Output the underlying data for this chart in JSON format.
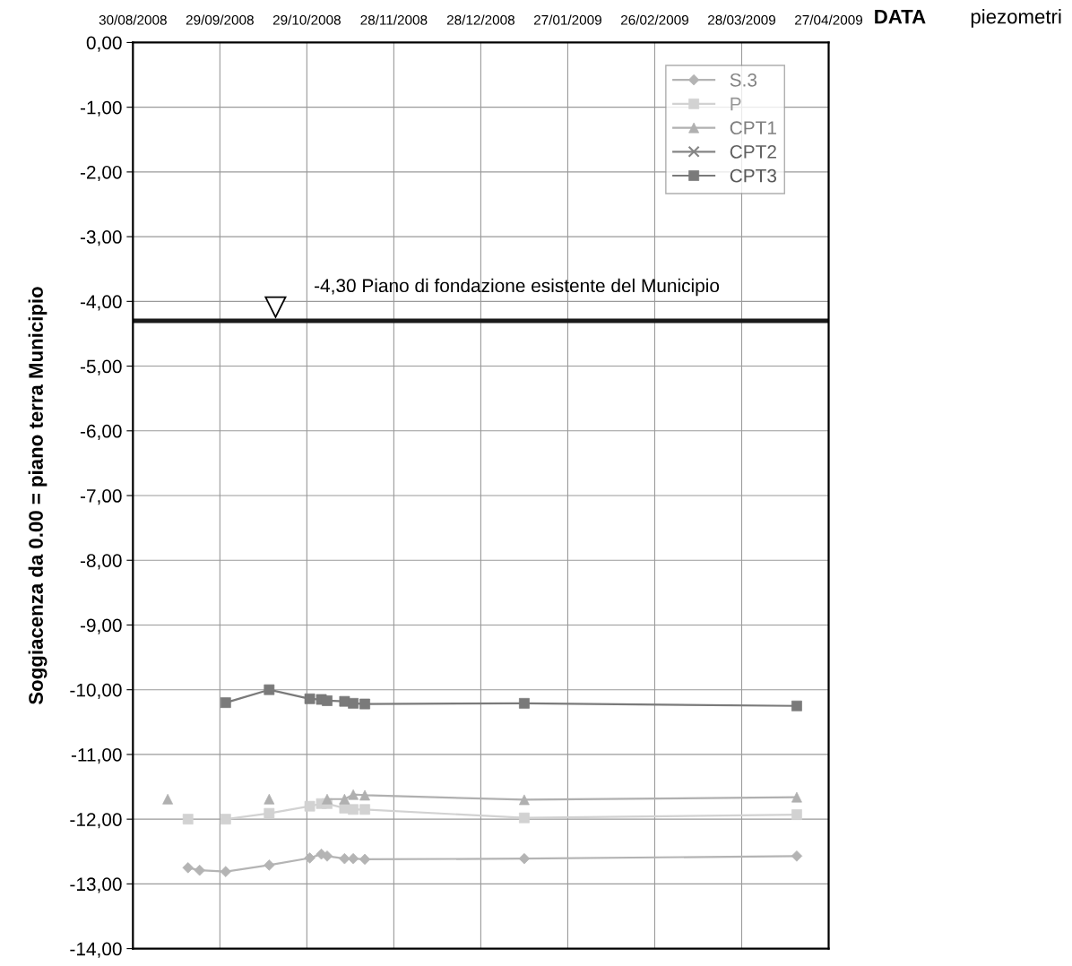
{
  "chart_data": {
    "type": "line",
    "xlabel": "DATA",
    "ylabel": "Soggiacenza da 0.00 = piano terra Municipio",
    "x": [
      "2008-09-11",
      "2008-09-18",
      "2008-09-22",
      "2008-10-01",
      "2008-10-16",
      "2008-10-30",
      "2008-11-03",
      "2008-11-05",
      "2008-11-11",
      "2008-11-14",
      "2008-11-18",
      "2009-01-12",
      "2009-04-16"
    ],
    "series": [
      {
        "name": "S.3",
        "color": "#b4b4b4",
        "marker": "diamond",
        "values": [
          null,
          -12.75,
          -12.79,
          -12.81,
          -12.71,
          -12.6,
          -12.54,
          -12.57,
          -12.61,
          -12.61,
          -12.62,
          -12.61,
          -12.57
        ]
      },
      {
        "name": "P",
        "color": "#d2d2d2",
        "marker": "square",
        "values": [
          null,
          -12.0,
          null,
          -12.0,
          -11.91,
          -11.8,
          -11.76,
          -11.76,
          -11.83,
          -11.85,
          -11.85,
          -11.98,
          -11.93
        ]
      },
      {
        "name": "CPT1",
        "color": "#b0b0b0",
        "marker": "triangle",
        "values": [
          -11.69,
          null,
          null,
          null,
          -11.69,
          null,
          null,
          -11.69,
          -11.69,
          -11.62,
          -11.63,
          -11.7,
          -11.66
        ]
      },
      {
        "name": "CPT2",
        "color": "#858585",
        "marker": "cross",
        "values": [
          null,
          null,
          null,
          null,
          null,
          null,
          null,
          null,
          null,
          null,
          null,
          null,
          null
        ]
      },
      {
        "name": "CPT3",
        "color": "#7a7a7a",
        "marker": "square",
        "values": [
          null,
          null,
          null,
          -10.2,
          -10.0,
          -10.14,
          -10.15,
          -10.17,
          -10.18,
          -10.21,
          -10.22,
          -10.21,
          -10.25
        ]
      }
    ],
    "xlim": [
      "2008-08-30",
      "2009-04-27"
    ],
    "xticks": [
      {
        "value": "2008-08-30",
        "label": "30/08/2008"
      },
      {
        "value": "2008-09-29",
        "label": "29/09/2008"
      },
      {
        "value": "2008-10-29",
        "label": "29/10/2008"
      },
      {
        "value": "2008-11-28",
        "label": "28/11/2008"
      },
      {
        "value": "2008-12-28",
        "label": "28/12/2008"
      },
      {
        "value": "2009-01-27",
        "label": "27/01/2009"
      },
      {
        "value": "2009-02-26",
        "label": "26/02/2009"
      },
      {
        "value": "2009-03-28",
        "label": "28/03/2009"
      },
      {
        "value": "2009-04-27",
        "label": "27/04/2009"
      }
    ],
    "ylim": [
      -14,
      0
    ],
    "yticks": [
      {
        "value": 0,
        "label": "0,00"
      },
      {
        "value": -1,
        "label": "-1,00"
      },
      {
        "value": -2,
        "label": "-2,00"
      },
      {
        "value": -3,
        "label": "-3,00"
      },
      {
        "value": -4,
        "label": "-4,00"
      },
      {
        "value": -5,
        "label": "-5,00"
      },
      {
        "value": -6,
        "label": "-6,00"
      },
      {
        "value": -7,
        "label": "-7,00"
      },
      {
        "value": -8,
        "label": "-8,00"
      },
      {
        "value": -9,
        "label": "-9,00"
      },
      {
        "value": -10,
        "label": "-10,00"
      },
      {
        "value": -11,
        "label": "-11,00"
      },
      {
        "value": -12,
        "label": "-12,00"
      },
      {
        "value": -13,
        "label": "-13,00"
      },
      {
        "value": -14,
        "label": "-14,00"
      }
    ],
    "ref_lines": [
      {
        "axis": "y",
        "value": -4.3,
        "label": "-4,30 Piano di fondazione esistente del Municipio",
        "color": "#1a1a1a"
      }
    ],
    "annotations": [
      "piezometri"
    ],
    "grid": true,
    "legend": "top right",
    "line_style": "solid"
  }
}
